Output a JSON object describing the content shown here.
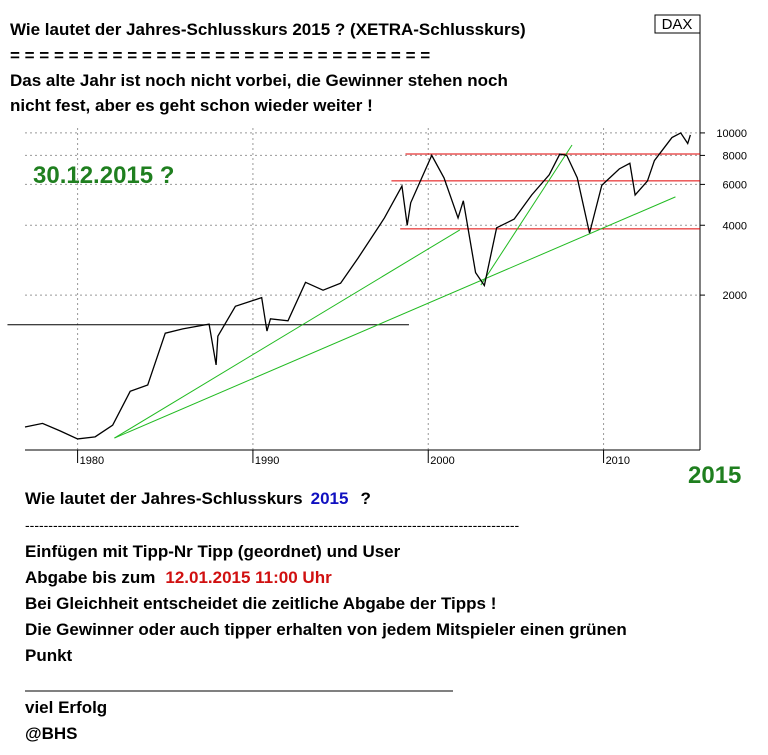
{
  "header": {
    "question": "Wie lautet der Jahres-Schlusskurs 2015 ? (XETRA-Schlusskurs)",
    "separator": "= = = = = = = = = = = = = = = = = = = = = = = = = = = = =",
    "intro_1": "Das alte Jahr ist noch nicht vorbei, die Gewinner stehen noch",
    "intro_2": "nicht fest, aber es geht schon wieder weiter !"
  },
  "chart_data": {
    "type": "line",
    "title": "DAX",
    "annotation": "30.12.2015 ?",
    "corner_label": "2015",
    "log_scale": true,
    "grid": true,
    "x": [
      1977,
      1978,
      1979,
      1980,
      1981,
      1982,
      1983,
      1984,
      1985,
      1986,
      1987.5,
      1987.9,
      1988,
      1989,
      1990.5,
      1990.8,
      1991,
      1992,
      1993,
      1994,
      1995,
      1996,
      1997.5,
      1998.5,
      1998.8,
      1999,
      2000.2,
      2000.9,
      2001.7,
      2002,
      2002.7,
      2003.2,
      2003.9,
      2004.9,
      2005.9,
      2006.9,
      2007.5,
      2007.9,
      2008.5,
      2009.2,
      2009.9,
      2010.9,
      2011.5,
      2011.8,
      2012.5,
      2012.9,
      2013.9,
      2014.4,
      2014.8,
      2014.95
    ],
    "series": [
      {
        "name": "DAX",
        "color": "#000000",
        "values": [
          540,
          560,
          520,
          480,
          490,
          550,
          770,
          820,
          1370,
          1430,
          1500,
          1000,
          1330,
          1790,
          1950,
          1400,
          1580,
          1550,
          2270,
          2100,
          2250,
          2890,
          4300,
          5900,
          4000,
          5000,
          8000,
          6400,
          4300,
          5100,
          2500,
          2200,
          3900,
          4250,
          5400,
          6600,
          8100,
          8000,
          6400,
          3700,
          5950,
          7000,
          7400,
          5400,
          6200,
          7600,
          9550,
          10000,
          9000,
          9800
        ]
      }
    ],
    "lines": [
      {
        "color": "#e00000",
        "x": [
          1998.7,
          2015.5
        ],
        "values": [
          8110,
          8110
        ]
      },
      {
        "color": "#e00000",
        "x": [
          1997.9,
          2015.5
        ],
        "values": [
          6210,
          6210
        ]
      },
      {
        "color": "#e00000",
        "x": [
          1998.4,
          2015.5
        ],
        "values": [
          3860,
          3860
        ]
      },
      {
        "color": "#000000",
        "x": [
          1976,
          1998.9
        ],
        "values": [
          1490,
          1490
        ]
      },
      {
        "color": "#22bb22",
        "x": [
          1982.1,
          2001.8
        ],
        "values": [
          484,
          3820
        ]
      },
      {
        "color": "#22bb22",
        "x": [
          1982.1,
          2014.1
        ],
        "values": [
          484,
          5300
        ]
      },
      {
        "color": "#22bb22",
        "x": [
          2003,
          2008.2
        ],
        "values": [
          2210,
          8870
        ]
      }
    ],
    "xlim": [
      1977,
      2015.5
    ],
    "xticks": [
      1980,
      1990,
      2000,
      2010
    ],
    "ylim": [
      430,
      10500
    ],
    "yticks": [
      2000,
      4000,
      6000,
      8000,
      10000
    ]
  },
  "footer": {
    "question": "Wie lautet der Jahres-Schlusskurs",
    "year": "2015",
    "question_end": "?",
    "dashes": "----------------------------------------------------------------------------------------------------------",
    "insert": "Einfügen mit Tipp-Nr  Tipp (geordnet) und User",
    "deadline_label": "Abgabe bis zum",
    "deadline": "12.01.2015 11:00 Uhr",
    "tie": "Bei Gleichheit entscheidet die zeitliche Abgabe der Tipps !",
    "reward_1": "Die Gewinner oder auch tipper erhalten von jedem Mitspieler einen grünen",
    "reward_2": "Punkt",
    "luck": "viel Erfolg",
    "author": "@BHS"
  }
}
